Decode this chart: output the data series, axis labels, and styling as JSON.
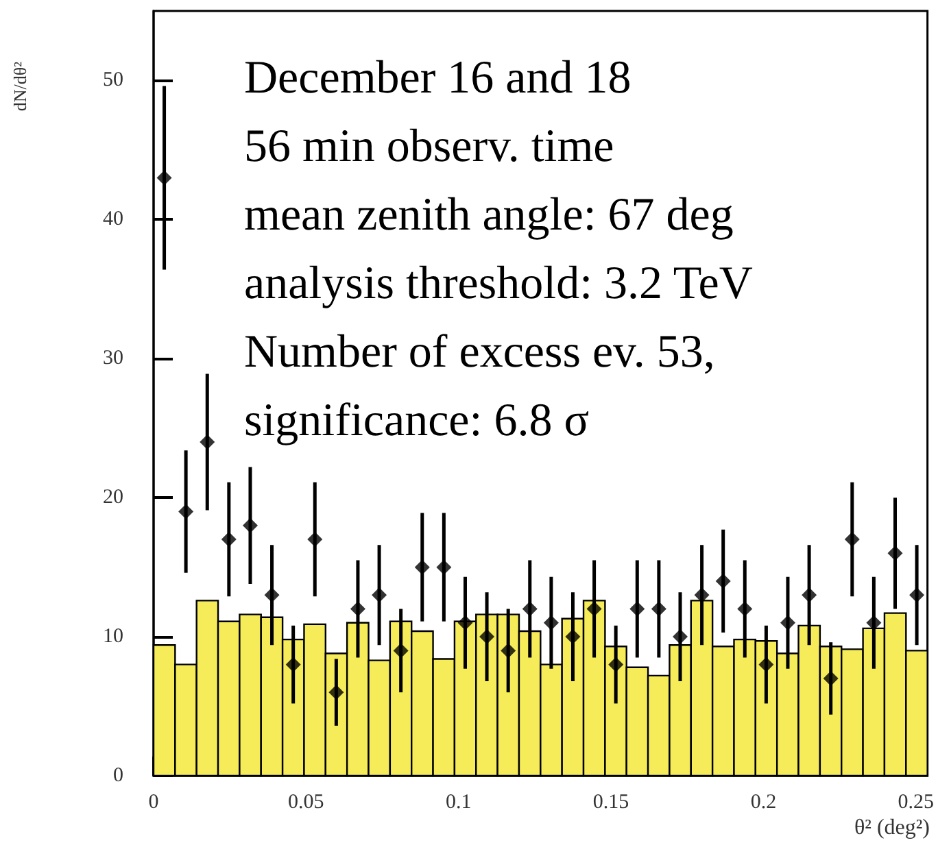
{
  "chart_data": {
    "type": "histogram",
    "xlabel": "θ² (deg²)",
    "ylabel": "dN/dθ²",
    "annotations": [
      "December 16 and 18",
      "56 min observ. time",
      "mean zenith angle: 67 deg",
      "analysis threshold: 3.2 TeV",
      "Number of excess ev. 53,",
      "significance: 6.8 σ"
    ],
    "bins": [
      0,
      0.00705,
      0.0141,
      0.02115,
      0.0282,
      0.03525,
      0.0423,
      0.04935,
      0.0564,
      0.06345,
      0.0705,
      0.07755,
      0.0846,
      0.09165,
      0.0987,
      0.10575,
      0.1128,
      0.11985,
      0.1269,
      0.13395,
      0.141,
      0.14805,
      0.1551,
      0.16215,
      0.1692,
      0.17625,
      0.1833,
      0.19035,
      0.1974,
      0.20445,
      0.2115,
      0.21855,
      0.2256,
      0.23265,
      0.2397,
      0.24675,
      0.2538
    ],
    "xlim": [
      0,
      0.2538
    ],
    "xticks": [
      0,
      0.05,
      0.1,
      0.15,
      0.2,
      0.25
    ],
    "ylim": [
      0,
      55
    ],
    "yticks": [
      0,
      10,
      20,
      30,
      40,
      50
    ],
    "grid": false,
    "series": [
      {
        "type": "histogram",
        "color": "#f6ec5a",
        "values": [
          9.4,
          8,
          12.6,
          11.1,
          11.6,
          11.4,
          9.8,
          10.9,
          8.8,
          11,
          8.3,
          11.1,
          10.4,
          8.4,
          11.1,
          11.6,
          11.6,
          10.4,
          8,
          11.3,
          12.6,
          9.3,
          7.8,
          7.2,
          9.4,
          12.6,
          9.3,
          9.8,
          9.7,
          8.8,
          10.8,
          9.3,
          9.1,
          10.6,
          11.7,
          9
        ]
      },
      {
        "type": "scatter",
        "color": "#000000",
        "marker": "diamond",
        "x": [
          0.0035,
          0.0106,
          0.0176,
          0.0247,
          0.0317,
          0.0388,
          0.0458,
          0.0529,
          0.0599,
          0.067,
          0.074,
          0.0811,
          0.0881,
          0.0952,
          0.1022,
          0.1093,
          0.1163,
          0.1234,
          0.1304,
          0.1375,
          0.1445,
          0.1516,
          0.1586,
          0.1657,
          0.1727,
          0.1798,
          0.1868,
          0.1939,
          0.2009,
          0.208,
          0.215,
          0.2221,
          0.2291,
          0.2362,
          0.2432,
          0.2503
        ],
        "values": [
          43,
          19,
          24,
          17,
          18,
          13,
          8,
          17,
          6,
          12,
          13,
          9,
          15,
          15,
          11,
          10,
          9,
          12,
          11,
          10,
          12,
          8,
          12,
          12,
          10,
          13,
          14,
          12,
          8,
          11,
          13,
          7,
          17,
          11,
          16,
          13
        ],
        "errors": [
          6.6,
          4.4,
          4.9,
          4.1,
          4.2,
          3.6,
          2.8,
          4.1,
          2.4,
          3.5,
          3.6,
          3,
          3.9,
          3.9,
          3.3,
          3.2,
          3,
          3.5,
          3.3,
          3.2,
          3.5,
          2.8,
          3.5,
          3.5,
          3.2,
          3.6,
          3.7,
          3.5,
          2.8,
          3.3,
          3.6,
          2.6,
          4.1,
          3.3,
          4,
          3.6
        ]
      }
    ]
  }
}
